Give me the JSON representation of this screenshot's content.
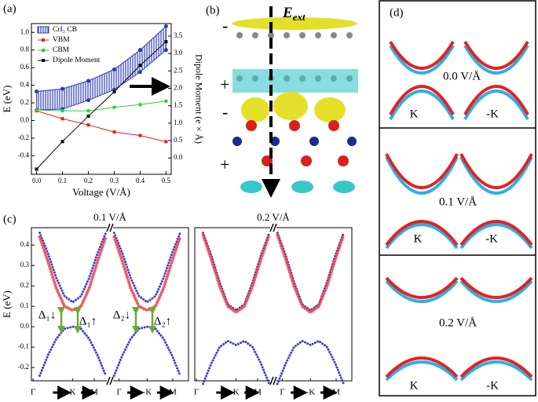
{
  "chart_data": [
    {
      "type": "line",
      "label": "(a)",
      "xlabel": "Voltage (V/Å)",
      "ylabel": "E (eV)",
      "y2label": "Dipole Moment (e × Å)",
      "x": [
        0,
        0.1,
        0.2,
        0.3,
        0.4,
        0.5
      ],
      "xlim": [
        -0.02,
        0.52
      ],
      "xticks": [
        {
          "value": 0,
          "label": "0.0"
        },
        0.1,
        0.2,
        0.3,
        0.4,
        0.5
      ],
      "ylim": [
        -0.61,
        1.1
      ],
      "yticks": [
        -0.4,
        -0.2,
        {
          "value": 0,
          "label": "0.0"
        },
        0.2,
        0.4,
        0.6,
        0.8,
        {
          "value": 1,
          "label": "1.0"
        }
      ],
      "y2lim": [
        -0.47,
        3.86
      ],
      "y2ticks": [
        {
          "value": 0,
          "label": "0.0"
        },
        0.5,
        {
          "value": 1,
          "label": "1.0"
        },
        1.5,
        {
          "value": 2,
          "label": "2.0"
        },
        2.5,
        {
          "value": 3,
          "label": "3.0"
        },
        3.5
      ],
      "legend": "upper left",
      "series": [
        {
          "name": "CrI₃ CB",
          "color": "#2a3bb5",
          "values": [
            0.33,
            0.36,
            0.45,
            0.58,
            0.8,
            1.07
          ],
          "lower": [
            0.12,
            0.13,
            0.23,
            0.35,
            0.55,
            0.8
          ]
        },
        {
          "name": "VBM",
          "color": "#e8201c",
          "values": [
            0.11,
            0.02,
            -0.05,
            -0.13,
            -0.17,
            -0.24
          ]
        },
        {
          "name": "CBM",
          "color": "#33cc33",
          "values": [
            0.12,
            0.11,
            0.11,
            0.15,
            0.18,
            0.22
          ]
        },
        {
          "name": "Dipole Moment",
          "color": "#000000",
          "axis": "y2",
          "values": [
            -0.32,
            0.47,
            1.2,
            1.9,
            2.66,
            3.34
          ]
        }
      ]
    },
    {
      "type": "bands",
      "label": "(c)",
      "title": "0.1 V/Å",
      "ylabel": "E (eV)",
      "x": [
        0.05,
        0.1,
        0.15,
        0.2,
        0.25,
        0.3,
        0.35,
        0.4,
        0.45,
        0.475,
        0.5,
        0.55,
        0.6,
        0.65,
        0.7,
        0.75,
        0.8,
        0.85,
        0.9
      ],
      "xlim": [
        0,
        0.95
      ],
      "ylim": [
        -0.265,
        0.485
      ],
      "yticks": [
        -0.2,
        -0.1,
        {
          "value": 0,
          "label": "0.0"
        },
        0.1,
        0.2,
        0.3,
        0.4
      ],
      "xticks": [
        {
          "value": 0.01,
          "label": "Γ"
        },
        {
          "value": 0.25,
          "label": "K"
        },
        {
          "value": 0.38,
          "label": "M"
        },
        {
          "value": 0.53,
          "label": "Γ"
        },
        {
          "value": 0.7,
          "label": "-K"
        },
        {
          "value": 0.855,
          "label": "M"
        }
      ],
      "series": [
        {
          "color": "#1c1cd0",
          "values": [
            -0.24,
            -0.14,
            -0.06,
            -0.01,
            0,
            -0.01,
            -0.06,
            -0.14,
            -0.24,
            null,
            -0.24,
            -0.14,
            -0.06,
            -0.01,
            0,
            -0.01,
            -0.06,
            -0.14,
            -0.24
          ]
        },
        {
          "color": "#1c1cd0",
          "values": [
            0.46,
            0.36,
            0.24,
            0.15,
            0.12,
            0.15,
            0.24,
            0.36,
            0.46,
            null,
            0.46,
            0.36,
            0.24,
            0.15,
            0.12,
            0.15,
            0.24,
            0.36,
            0.46
          ]
        },
        {
          "color": "#f04040",
          "values": [
            0.44,
            0.32,
            0.19,
            0.1,
            0.08,
            0.1,
            0.19,
            0.32,
            0.44,
            null,
            0.44,
            0.32,
            0.19,
            0.1,
            0.08,
            0.1,
            0.19,
            0.32,
            0.44
          ]
        }
      ],
      "annotations": [
        "Δ₁↓",
        "Δ₁↑",
        "Δ₂↓",
        "Δ₂↑"
      ]
    },
    {
      "type": "bands",
      "title": "0.2 V/Å",
      "x": [
        0.05,
        0.1,
        0.15,
        0.2,
        0.25,
        0.3,
        0.35,
        0.4,
        0.45,
        0.475,
        0.5,
        0.55,
        0.6,
        0.65,
        0.7,
        0.75,
        0.8,
        0.85,
        0.9
      ],
      "xlim": [
        0,
        0.95
      ],
      "ylim": [
        -0.265,
        0.485
      ],
      "xticks": [
        {
          "value": 0.01,
          "label": "Γ"
        },
        {
          "value": 0.25,
          "label": "K"
        },
        {
          "value": 0.38,
          "label": "M"
        },
        {
          "value": 0.53,
          "label": "Γ"
        },
        {
          "value": 0.7,
          "label": "-K"
        },
        {
          "value": 0.855,
          "label": "M"
        }
      ],
      "series": [
        {
          "color": "#1c1cd0",
          "values": [
            -0.28,
            -0.18,
            -0.1,
            -0.07,
            -0.09,
            -0.07,
            -0.1,
            -0.18,
            -0.28,
            null,
            -0.28,
            -0.18,
            -0.1,
            -0.07,
            -0.09,
            -0.07,
            -0.1,
            -0.18,
            -0.28
          ]
        },
        {
          "color": "#1c1cd0",
          "values": [
            0.46,
            0.35,
            0.22,
            0.11,
            0.08,
            0.11,
            0.22,
            0.35,
            0.46,
            null,
            0.46,
            0.35,
            0.22,
            0.11,
            0.08,
            0.11,
            0.22,
            0.35,
            0.46
          ]
        },
        {
          "color": "#f04040",
          "values": [
            0.45,
            0.33,
            0.2,
            0.1,
            0.07,
            0.1,
            0.2,
            0.33,
            0.45,
            null,
            0.45,
            0.33,
            0.2,
            0.1,
            0.07,
            0.1,
            0.2,
            0.33,
            0.45
          ]
        }
      ]
    }
  ],
  "panel_b": {
    "label": "(b)",
    "field": "E",
    "field_sub": "ext",
    "charges": [
      "-",
      "+",
      "-",
      "+"
    ]
  },
  "panel_d": {
    "label": "(d)",
    "cells": [
      {
        "field": "0.0 V/Å",
        "valleys": [
          "K",
          "-K"
        ]
      },
      {
        "field": "0.1 V/Å",
        "valleys": [
          "K",
          "-K"
        ]
      },
      {
        "field": "0.2 V/Å",
        "valleys": [
          "K",
          "-K"
        ]
      }
    ]
  }
}
